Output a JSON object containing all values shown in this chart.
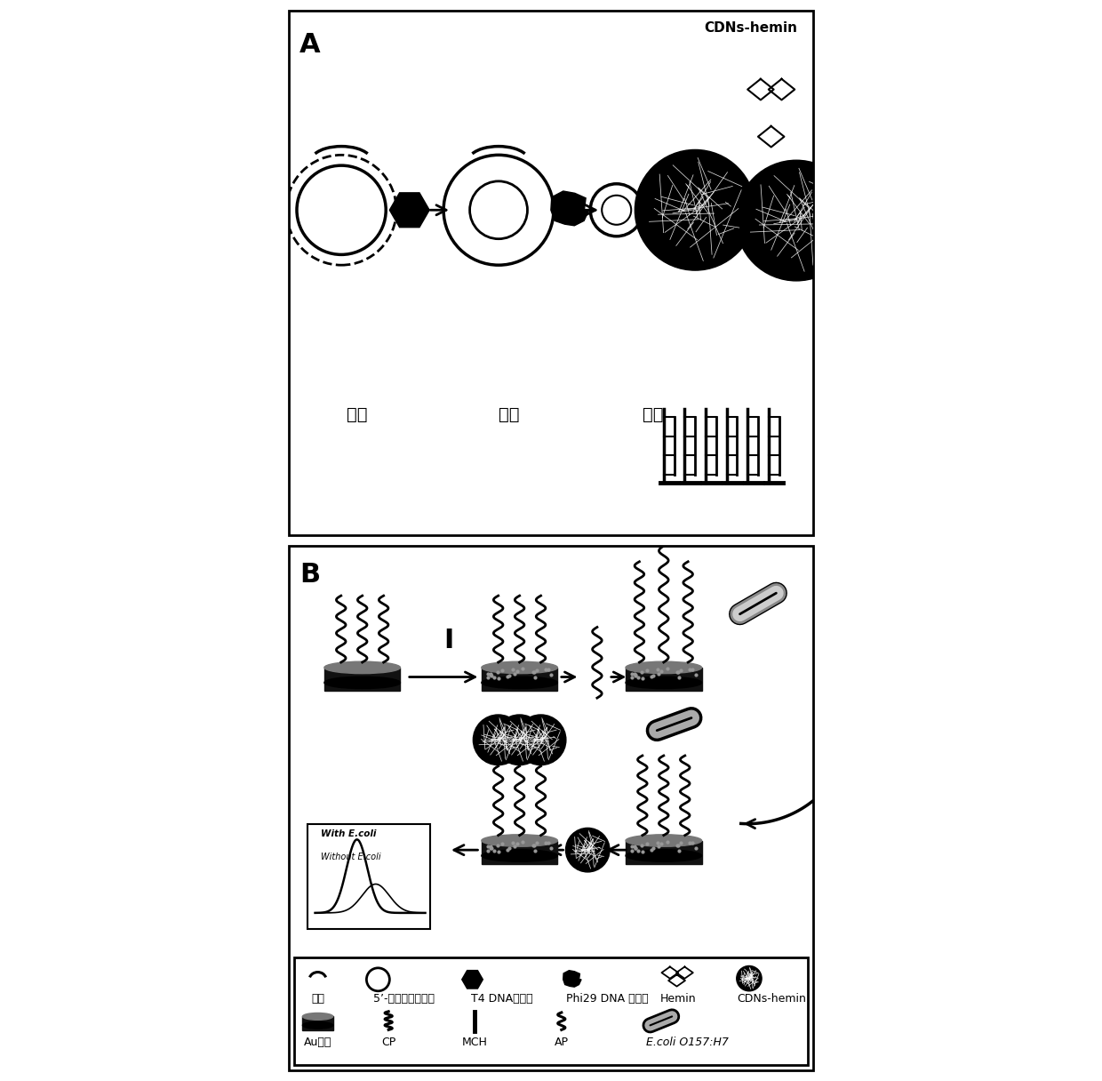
{
  "bg_color": "#ffffff",
  "border_color": "#000000",
  "panel_A_label": "A",
  "panel_B_label": "B",
  "anneal_label": "退火",
  "ligate_label": "连接",
  "amplify_label": "扩增",
  "cdns_hemin_label": "CDNs-hemin",
  "legend_items_row1": [
    "引物",
    "5’-磷酸化线性模板",
    "T4 DNA连接酶",
    "Phi29 DNA 聚合酶",
    "Hemin",
    "CDNs-hemin"
  ],
  "legend_items_row2": [
    "Au电极",
    "CP",
    "MCH",
    "AP",
    "E.coli O157:H7"
  ]
}
